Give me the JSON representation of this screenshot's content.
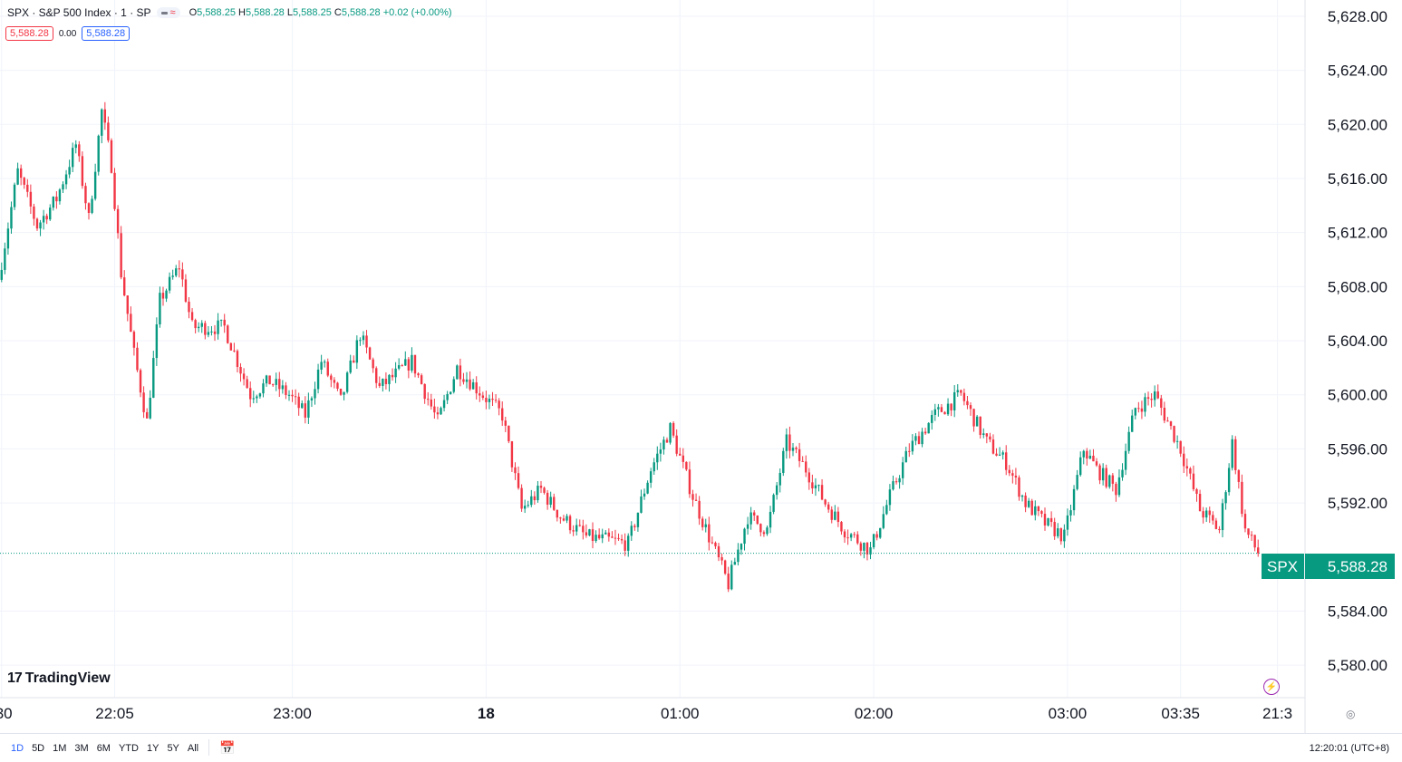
{
  "header": {
    "symbol_line": "SPX · S&P 500 Index · 1 · SP",
    "ohlc": {
      "o_label": "O",
      "o": "5,588.25",
      "h_label": "H",
      "h": "5,588.28",
      "l_label": "L",
      "l": "5,588.25",
      "c_label": "C",
      "c": "5,588.28",
      "change": "+0.02 (+0.00%)"
    },
    "bid": "5,588.28",
    "spread": "0.00",
    "ask": "5,588.28"
  },
  "logo_text": "TradingView",
  "price_tag": {
    "symbol": "SPX",
    "value": "5,588.28"
  },
  "range_buttons": [
    "1D",
    "5D",
    "1M",
    "3M",
    "6M",
    "YTD",
    "1Y",
    "5Y",
    "All"
  ],
  "active_range": "1D",
  "clock": "12:20:01 (UTC+8)",
  "colors": {
    "up": "#089981",
    "down": "#f23645",
    "grid": "#f0f3fa",
    "text": "#131722"
  },
  "icons": {
    "bolt": "bolt-icon",
    "gear": "gear-icon",
    "calendar": "calendar-icon"
  },
  "chart_data": {
    "type": "candlestick",
    "y_ticks": [
      "5,628.00",
      "5,624.00",
      "5,620.00",
      "5,616.00",
      "5,612.00",
      "5,608.00",
      "5,604.00",
      "5,600.00",
      "5,596.00",
      "5,592.00",
      "5,588.28",
      "5,584.00",
      "5,580.00"
    ],
    "y_tick_values": [
      5628,
      5624,
      5620,
      5616,
      5612,
      5608,
      5604,
      5600,
      5596,
      5592,
      5584,
      5580
    ],
    "ylim": [
      5577.6,
      5629.2
    ],
    "x_ticks": [
      {
        "label": ":30",
        "i": 0
      },
      {
        "label": "22:05",
        "i": 35
      },
      {
        "label": "23:00",
        "i": 90
      },
      {
        "label": "18",
        "i": 150,
        "bold": true
      },
      {
        "label": "01:00",
        "i": 210
      },
      {
        "label": "02:00",
        "i": 270
      },
      {
        "label": "03:00",
        "i": 330
      },
      {
        "label": "03:35",
        "i": 365
      },
      {
        "label": "21:3",
        "i": 395
      }
    ],
    "bar_count": 390,
    "last_price": 5588.28,
    "path": [
      [
        0,
        5608.5
      ],
      [
        6,
        5616.5
      ],
      [
        12,
        5612.5
      ],
      [
        18,
        5614.5
      ],
      [
        24,
        5618.5
      ],
      [
        28,
        5613
      ],
      [
        32,
        5621
      ],
      [
        35,
        5617
      ],
      [
        38,
        5609
      ],
      [
        42,
        5603
      ],
      [
        46,
        5598
      ],
      [
        50,
        5607
      ],
      [
        56,
        5609.5
      ],
      [
        60,
        5605
      ],
      [
        70,
        5605
      ],
      [
        78,
        5600
      ],
      [
        84,
        5601
      ],
      [
        90,
        5600
      ],
      [
        95,
        5598.5
      ],
      [
        100,
        5602.5
      ],
      [
        106,
        5599.5
      ],
      [
        112,
        5604.5
      ],
      [
        118,
        5600.5
      ],
      [
        128,
        5602.5
      ],
      [
        136,
        5598
      ],
      [
        142,
        5602
      ],
      [
        150,
        5600
      ],
      [
        156,
        5598.5
      ],
      [
        162,
        5591.5
      ],
      [
        168,
        5593
      ],
      [
        174,
        5591
      ],
      [
        182,
        5589.5
      ],
      [
        195,
        5589
      ],
      [
        202,
        5594.5
      ],
      [
        208,
        5597.5
      ],
      [
        215,
        5592.5
      ],
      [
        220,
        5589.5
      ],
      [
        226,
        5586
      ],
      [
        232,
        5591
      ],
      [
        238,
        5590
      ],
      [
        244,
        5596.5
      ],
      [
        250,
        5594.5
      ],
      [
        256,
        5592
      ],
      [
        262,
        5590
      ],
      [
        270,
        5588.5
      ],
      [
        276,
        5592.5
      ],
      [
        282,
        5596
      ],
      [
        290,
        5598.5
      ],
      [
        298,
        5600
      ],
      [
        306,
        5596.5
      ],
      [
        312,
        5595
      ],
      [
        318,
        5592
      ],
      [
        324,
        5590.5
      ],
      [
        330,
        5589.5
      ],
      [
        336,
        5596
      ],
      [
        340,
        5594.5
      ],
      [
        346,
        5593
      ],
      [
        352,
        5599
      ],
      [
        358,
        5600
      ],
      [
        366,
        5596
      ],
      [
        372,
        5591.5
      ],
      [
        378,
        5590
      ],
      [
        382,
        5596.5
      ],
      [
        386,
        5590
      ],
      [
        390,
        5588.28
      ]
    ]
  }
}
